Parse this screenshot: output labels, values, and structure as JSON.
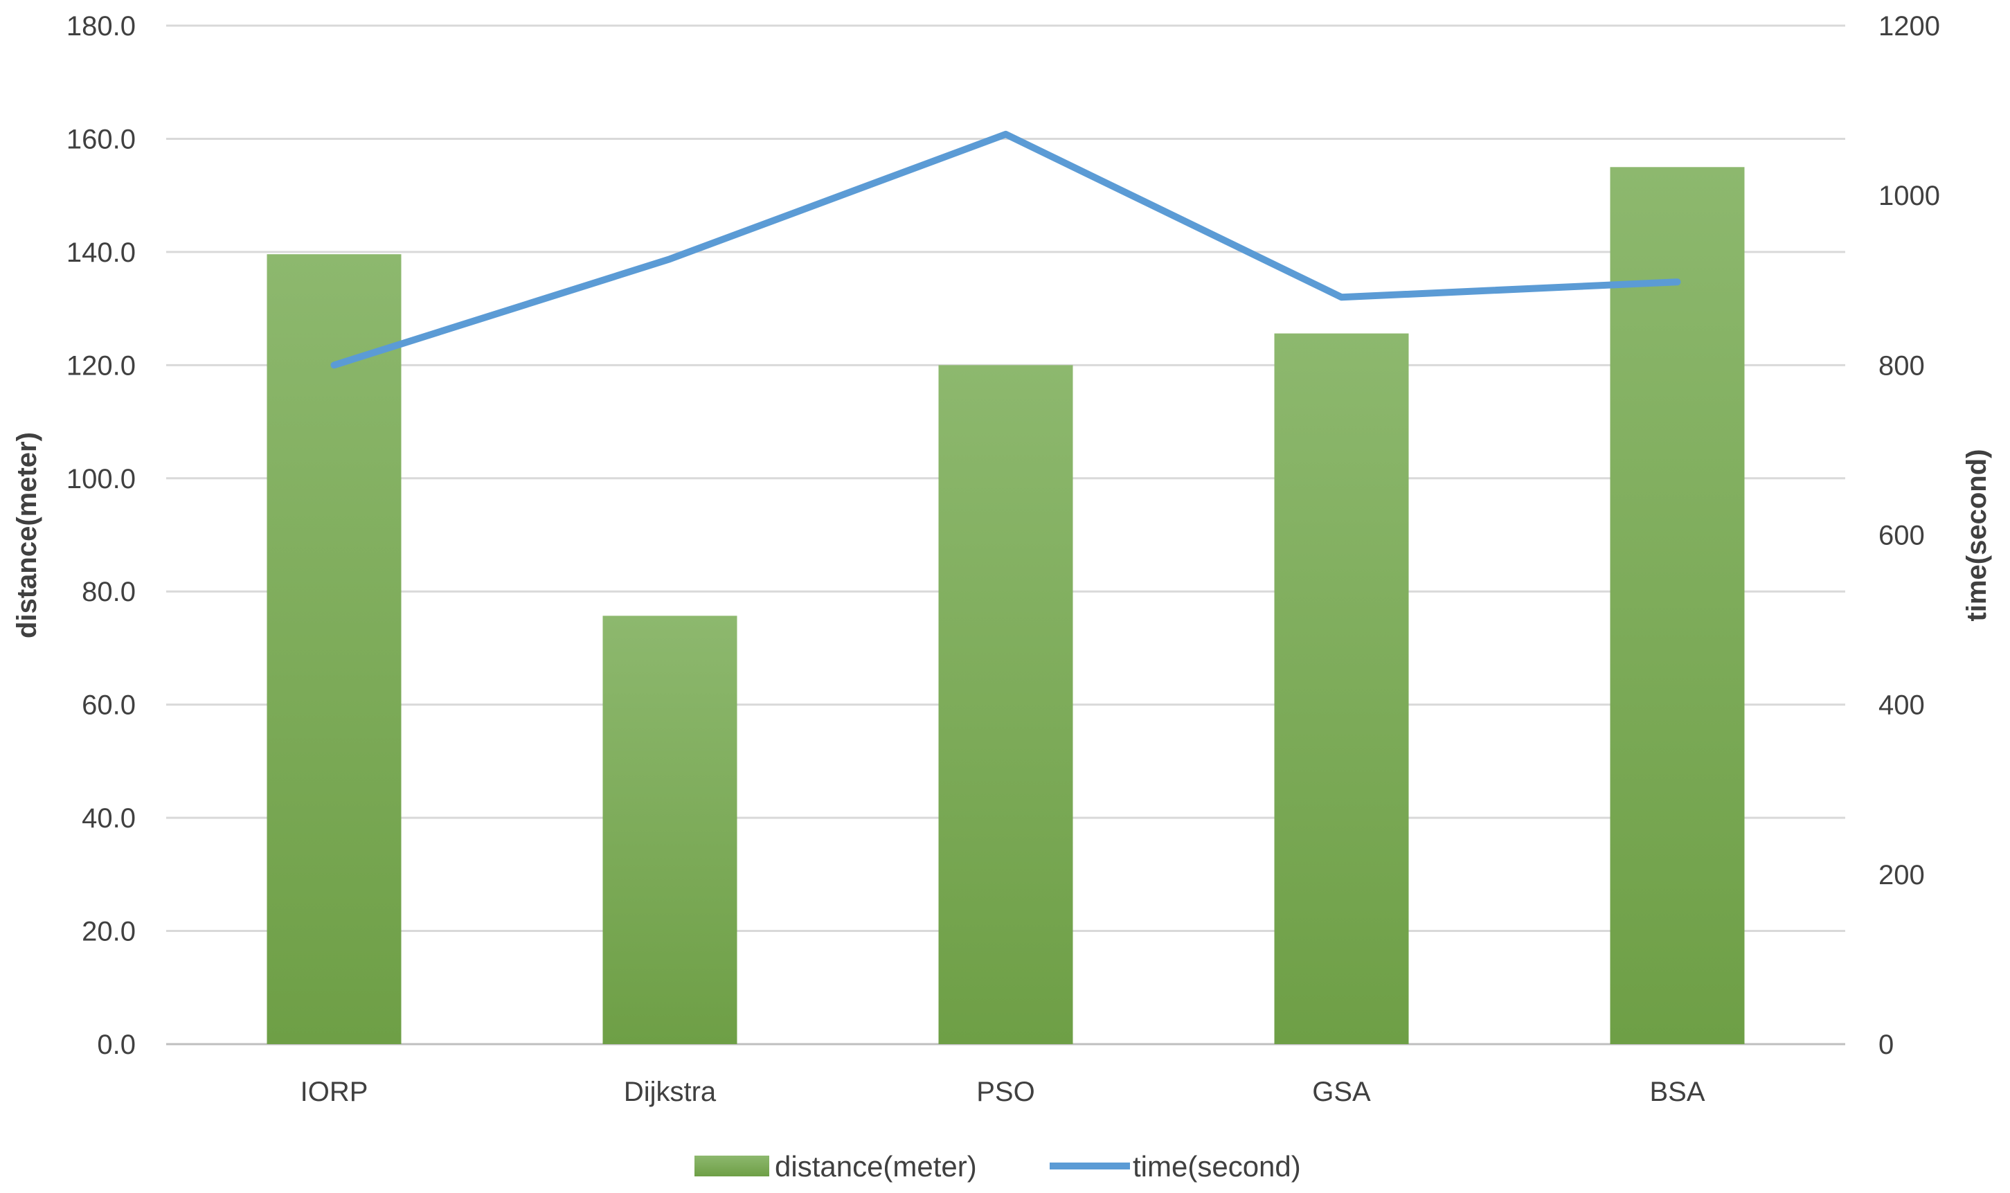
{
  "chart_data": {
    "type": "bar",
    "title": "",
    "categories": [
      "IORP",
      "Dijkstra",
      "PSO",
      "GSA",
      "BSA"
    ],
    "series": [
      {
        "name": "distance(meter)",
        "type": "bar",
        "axis": "left",
        "color": "#70AD47",
        "values": [
          139.6,
          75.7,
          120.0,
          125.6,
          155.0
        ]
      },
      {
        "name": "time(second)",
        "type": "line",
        "axis": "right",
        "color": "#5B9BD5",
        "values": [
          800,
          925,
          1072,
          880,
          898
        ]
      }
    ],
    "ylabel": "distance(meter)",
    "ylabel_right": "time(second)",
    "ylim": [
      0,
      180
    ],
    "ylim_right": [
      0,
      1200
    ],
    "yticks": [
      "0.0",
      "20.0",
      "40.0",
      "60.0",
      "80.0",
      "100.0",
      "120.0",
      "140.0",
      "160.0",
      "180.0"
    ],
    "yticks_right": [
      "0",
      "200",
      "400",
      "600",
      "800",
      "1000",
      "1200"
    ],
    "grid": true,
    "legend_position": "bottom"
  }
}
